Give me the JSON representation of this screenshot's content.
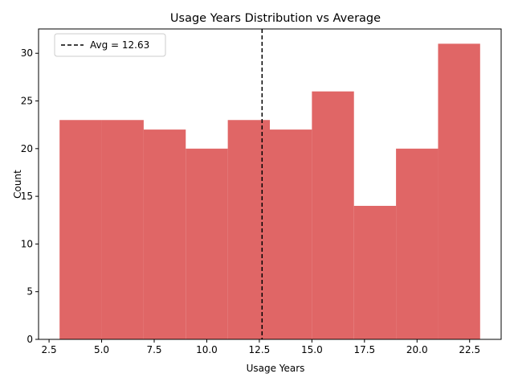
{
  "chart_data": {
    "type": "bar",
    "title": "Usage Years Distribution vs Average",
    "xlabel": "Usage Years",
    "ylabel": "Count",
    "bin_edges": [
      3,
      5,
      7,
      9,
      11,
      13,
      15,
      17,
      19,
      21,
      23
    ],
    "counts": [
      23,
      23,
      22,
      20,
      23,
      22,
      26,
      14,
      20,
      31
    ],
    "xlim": [
      2.0,
      24.0
    ],
    "ylim": [
      0,
      32.55
    ],
    "xticks": [
      2.5,
      5.0,
      7.5,
      10.0,
      12.5,
      15.0,
      17.5,
      20.0,
      22.5
    ],
    "xtick_labels": [
      "2.5",
      "5.0",
      "7.5",
      "10.0",
      "12.5",
      "15.0",
      "17.5",
      "20.0",
      "22.5"
    ],
    "yticks": [
      0,
      5,
      10,
      15,
      20,
      25,
      30
    ],
    "ytick_labels": [
      "0",
      "5",
      "10",
      "15",
      "20",
      "25",
      "30"
    ],
    "average": 12.63,
    "legend": {
      "placement": "top-left",
      "entries": [
        "Avg = 12.63"
      ]
    },
    "grid": false,
    "colors": {
      "bar": "#e06666",
      "average_line": "#000000"
    }
  }
}
